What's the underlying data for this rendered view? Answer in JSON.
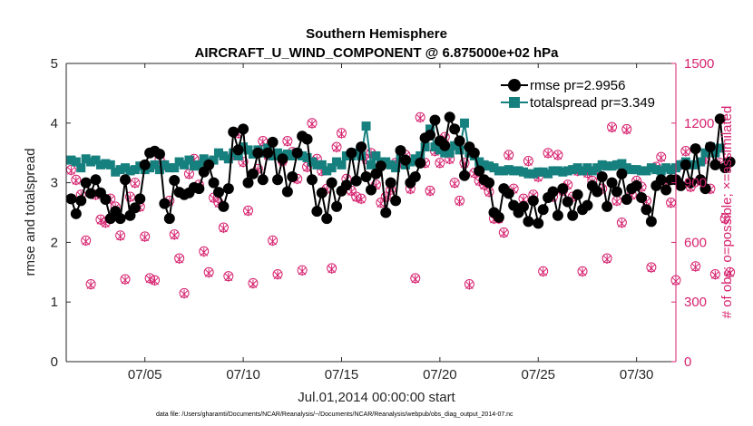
{
  "chart_data": {
    "type": "line",
    "title": "Southern Hemisphere",
    "subtitle": "AIRCRAFT_U_WIND_COMPONENT @ 6.875000e+02 hPa",
    "xlabel": "Jul.01,2014 00:00:00 start",
    "ylabel": "rmse and totalspread",
    "y2label": "# of obs: o=possible; ×=assimilated",
    "footnote": "data file: /Users/gharamti/Documents/NCAR/Reanalysis/~/Documents/NCAR/Reanalysis/webpub/obs_diag_output_2014-07.nc",
    "xlim": [
      1,
      32
    ],
    "ylim": [
      0,
      5
    ],
    "y2lim": [
      0,
      1500
    ],
    "xticks": [
      5,
      10,
      15,
      20,
      25,
      30
    ],
    "xtick_labels": [
      "07/05",
      "07/10",
      "07/15",
      "07/20",
      "07/25",
      "07/30"
    ],
    "yticks": [
      0,
      1,
      2,
      3,
      4,
      5
    ],
    "ytick_labels": [
      "0",
      "1",
      "2",
      "3",
      "4",
      "5"
    ],
    "y2ticks": [
      0,
      300,
      600,
      900,
      1200,
      1500
    ],
    "y2tick_labels": [
      "0",
      "300",
      "600",
      "900",
      "1200",
      "1500"
    ],
    "legend_position": "top-right",
    "colors": {
      "rmse": "#000000",
      "spread": "#16807f",
      "obs": "#d6226f",
      "axis": "#262626"
    },
    "series": [
      {
        "name": "rmse pr=2.9956",
        "axis": "left",
        "x_start": 1.25,
        "x_step": 0.25,
        "values": [
          2.73,
          2.48,
          2.7,
          3.0,
          2.82,
          3.05,
          2.83,
          2.72,
          2.4,
          2.52,
          2.4,
          3.05,
          2.45,
          2.58,
          2.73,
          3.3,
          3.5,
          3.53,
          3.48,
          2.65,
          2.4,
          3.04,
          2.84,
          2.8,
          2.83,
          2.92,
          2.9,
          3.18,
          3.3,
          3.0,
          2.84,
          2.6,
          2.9,
          3.85,
          3.55,
          3.9,
          3.0,
          3.15,
          3.5,
          3.05,
          3.5,
          3.68,
          3.05,
          3.4,
          2.85,
          3.1,
          3.5,
          3.78,
          3.73,
          3.05,
          2.52,
          2.83,
          2.4,
          3.0,
          2.6,
          2.86,
          2.96,
          3.5,
          3.03,
          3.6,
          3.1,
          2.88,
          3.15,
          3.28,
          2.5,
          3.0,
          2.7,
          3.54,
          3.38,
          3.0,
          3.1,
          3.33,
          3.75,
          3.8,
          4.05,
          3.7,
          3.62,
          4.1,
          3.9,
          3.7,
          3.12,
          3.6,
          3.5,
          3.2,
          3.05,
          3.0,
          2.5,
          2.42,
          2.9,
          2.82,
          2.62,
          2.5,
          2.6,
          2.35,
          2.7,
          2.32,
          2.55,
          2.75,
          2.85,
          2.45,
          2.9,
          2.68,
          2.45,
          2.8,
          2.55,
          2.62,
          2.95,
          2.85,
          3.1,
          2.6,
          3.0,
          2.85,
          3.15,
          2.72,
          2.9,
          2.95,
          2.75,
          2.55,
          2.35,
          2.95,
          3.05,
          2.88,
          3.05,
          3.05,
          2.95,
          3.3,
          3.0,
          3.57,
          3.05,
          2.9,
          3.6,
          3.3,
          4.07,
          3.25,
          3.35
        ]
      },
      {
        "name": "totalspread pr=3.349",
        "axis": "left",
        "x_start": 1.25,
        "x_step": 0.25,
        "values": [
          3.38,
          3.35,
          3.25,
          3.4,
          3.35,
          3.38,
          3.3,
          3.32,
          3.3,
          3.18,
          3.22,
          3.25,
          3.2,
          3.22,
          3.28,
          3.22,
          3.25,
          3.3,
          3.22,
          3.3,
          3.25,
          3.25,
          3.35,
          3.3,
          3.38,
          3.28,
          3.3,
          3.4,
          3.35,
          3.38,
          3.5,
          3.45,
          3.4,
          3.5,
          3.45,
          3.6,
          3.55,
          3.48,
          3.55,
          3.5,
          3.58,
          3.45,
          3.5,
          3.45,
          3.48,
          3.45,
          3.5,
          3.45,
          3.42,
          3.35,
          3.3,
          3.3,
          3.2,
          3.25,
          3.35,
          3.3,
          3.45,
          3.45,
          3.5,
          3.45,
          3.95,
          3.3,
          3.45,
          3.35,
          3.35,
          3.3,
          3.25,
          3.4,
          3.3,
          3.35,
          3.4,
          3.45,
          3.6,
          3.9,
          3.6,
          3.55,
          3.5,
          3.5,
          3.62,
          3.55,
          4.0,
          3.5,
          3.45,
          3.35,
          3.3,
          3.28,
          3.25,
          3.2,
          3.2,
          3.22,
          3.2,
          3.2,
          3.18,
          3.15,
          3.15,
          3.18,
          3.18,
          3.15,
          3.2,
          3.2,
          3.18,
          3.2,
          3.22,
          3.25,
          3.2,
          3.25,
          3.2,
          3.25,
          3.3,
          3.28,
          3.28,
          3.3,
          3.32,
          3.25,
          3.22,
          3.22,
          3.2,
          3.2,
          3.25,
          3.22,
          3.2,
          3.25,
          3.22,
          3.25,
          3.3,
          3.35,
          3.3,
          3.3,
          3.35,
          3.5,
          3.6,
          3.5,
          3.58
        ]
      },
      {
        "name": "obs possible",
        "axis": "right",
        "x_start": 1.25,
        "x_step": 0.25,
        "values": [
          965,
          915,
          840,
          610,
          390,
          840,
          715,
          700,
          820,
          780,
          635,
          415,
          830,
          900,
          780,
          630,
          420,
          410,
          1020,
          990,
          810,
          640,
          520,
          345,
          945,
          1020,
          890,
          555,
          450,
          825,
          800,
          675,
          430,
          1040,
          1150,
          1005,
          760,
          395,
          970,
          1110,
          1040,
          610,
          440,
          1010,
          1110,
          1055,
          920,
          460,
          980,
          1200,
          1020,
          960,
          870,
          470,
          1080,
          1150,
          920,
          860,
          830,
          820,
          1020,
          1050,
          890,
          800,
          830,
          865,
          1000,
          1000,
          1040,
          870,
          420,
          1230,
          1000,
          860,
          1060,
          1000,
          1130,
          1020,
          900,
          810,
          1000,
          390,
          950,
          910,
          890,
          855,
          720,
          720,
          650,
          1040,
          870,
          770,
          820,
          1010,
          840,
          930,
          455,
          1050,
          830,
          1040,
          860,
          890,
          830,
          960,
          455,
          950,
          910,
          970,
          870,
          520,
          1180,
          810,
          700,
          1170,
          840,
          910,
          880,
          810,
          475,
          980,
          1030,
          900,
          800,
          410,
          990,
          1060,
          880,
          480,
          910,
          1020,
          870,
          440,
          1000,
          720,
          450
        ]
      },
      {
        "name": "obs assimilated",
        "axis": "right",
        "x_start": 1.25,
        "x_step": 0.25,
        "values": [
          960,
          910,
          835,
          605,
          385,
          835,
          710,
          695,
          815,
          775,
          630,
          410,
          825,
          895,
          775,
          625,
          415,
          405,
          1015,
          985,
          805,
          635,
          515,
          340,
          940,
          1015,
          885,
          550,
          445,
          820,
          795,
          670,
          425,
          1035,
          1145,
          1000,
          755,
          390,
          965,
          1105,
          1035,
          605,
          435,
          1005,
          1105,
          1050,
          915,
          455,
          975,
          1195,
          1015,
          955,
          865,
          465,
          1075,
          1145,
          915,
          855,
          825,
          815,
          1015,
          1045,
          885,
          795,
          825,
          860,
          995,
          995,
          1035,
          865,
          415,
          1225,
          995,
          855,
          1055,
          995,
          1125,
          1015,
          895,
          805,
          995,
          385,
          945,
          905,
          885,
          850,
          715,
          715,
          645,
          1035,
          865,
          765,
          815,
          1005,
          835,
          925,
          450,
          1045,
          825,
          1035,
          855,
          885,
          825,
          955,
          450,
          945,
          905,
          965,
          865,
          515,
          1175,
          805,
          695,
          1165,
          835,
          905,
          875,
          805,
          470,
          975,
          1025,
          895,
          795,
          405,
          985,
          1055,
          875,
          475,
          905,
          1015,
          865,
          435,
          995,
          715,
          445
        ]
      }
    ]
  }
}
